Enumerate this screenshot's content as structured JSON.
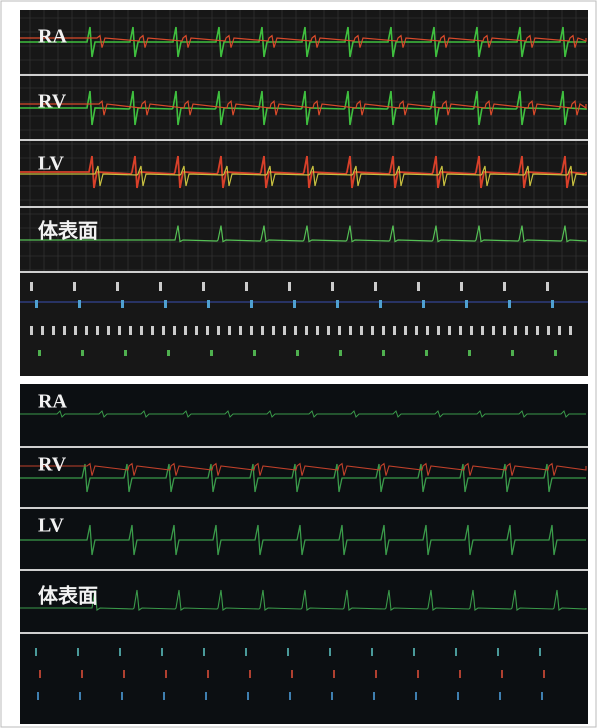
{
  "panels": [
    {
      "channels": [
        {
          "label": "RA"
        },
        {
          "label": "RV"
        },
        {
          "label": "LV"
        },
        {
          "label": "体表面"
        }
      ]
    },
    {
      "channels": [
        {
          "label": "RA"
        },
        {
          "label": "RV"
        },
        {
          "label": "LV"
        },
        {
          "label": "体表面"
        }
      ]
    }
  ]
}
